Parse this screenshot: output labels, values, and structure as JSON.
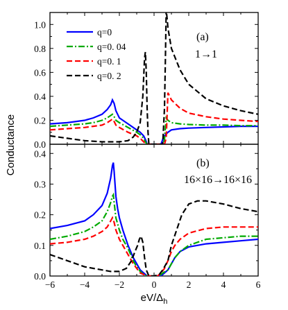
{
  "chart_data": [
    {
      "panel": "a",
      "type": "line",
      "annotation": "(a)",
      "subtitle": "1→1",
      "ylabel": "",
      "xlim": [
        -6,
        6
      ],
      "ylim": [
        0,
        1.1
      ],
      "yticks": [
        "0.0",
        "0.2",
        "0.4",
        "0.6",
        "0.8",
        "1.0"
      ],
      "ytick_values": [
        0,
        0.2,
        0.4,
        0.6,
        0.8,
        1.0
      ],
      "legend_position": "top-left",
      "series": [
        {
          "name": "q=0",
          "color": "#0000ff",
          "dash": "solid",
          "x": [
            -6,
            -5,
            -4,
            -3.5,
            -3,
            -2.7,
            -2.5,
            -2.4,
            -2.3,
            -2.2,
            -2.1,
            -2.0,
            -1.5,
            -1.0,
            -0.8,
            -0.6,
            -0.5,
            -0.45,
            -0.4,
            0.4,
            0.45,
            0.5,
            0.6,
            0.8,
            1.0,
            1.5,
            2,
            3,
            4,
            5,
            6
          ],
          "y": [
            0.17,
            0.18,
            0.2,
            0.22,
            0.25,
            0.29,
            0.33,
            0.37,
            0.34,
            0.28,
            0.25,
            0.22,
            0.17,
            0.12,
            0.1,
            0.07,
            0.04,
            0.02,
            0,
            0,
            0.02,
            0.04,
            0.07,
            0.1,
            0.12,
            0.13,
            0.135,
            0.14,
            0.145,
            0.15,
            0.15
          ]
        },
        {
          "name": "q=0. 04",
          "color": "#00aa00",
          "dash": "dashdot",
          "x": [
            -6,
            -5,
            -4,
            -3.5,
            -3,
            -2.7,
            -2.5,
            -2.4,
            -2.3,
            -2.2,
            -2.1,
            -2.0,
            -1.5,
            -1.0,
            -0.8,
            -0.6,
            -0.5,
            -0.4,
            0.5,
            0.6,
            0.7,
            0.8,
            1.0,
            1.5,
            2,
            3,
            4,
            5,
            6
          ],
          "y": [
            0.15,
            0.16,
            0.17,
            0.18,
            0.2,
            0.22,
            0.24,
            0.25,
            0.23,
            0.2,
            0.19,
            0.18,
            0.14,
            0.1,
            0.08,
            0.05,
            0.02,
            0,
            0,
            0.04,
            0.22,
            0.2,
            0.18,
            0.17,
            0.165,
            0.16,
            0.16,
            0.155,
            0.155
          ]
        },
        {
          "name": "q=0. 1",
          "color": "#ff0000",
          "dash": "dash",
          "x": [
            -6,
            -5,
            -4,
            -3.5,
            -3,
            -2.7,
            -2.5,
            -2.4,
            -2.3,
            -2.2,
            -2.0,
            -1.5,
            -1.0,
            -0.8,
            -0.6,
            -0.5,
            -0.4,
            0.6,
            0.7,
            0.8,
            1.0,
            1.5,
            2,
            3,
            4,
            5,
            6
          ],
          "y": [
            0.12,
            0.13,
            0.14,
            0.15,
            0.16,
            0.18,
            0.2,
            0.21,
            0.19,
            0.16,
            0.14,
            0.1,
            0.07,
            0.05,
            0.02,
            0.01,
            0,
            0,
            0.05,
            0.43,
            0.37,
            0.3,
            0.26,
            0.23,
            0.21,
            0.2,
            0.19
          ]
        },
        {
          "name": "q=0. 2",
          "color": "#000000",
          "dash": "dash",
          "x": [
            -6,
            -5,
            -4,
            -3,
            -2.5,
            -2,
            -1.5,
            -1.2,
            -1.0,
            -0.8,
            -0.65,
            -0.55,
            -0.5,
            -0.45,
            -0.4,
            -0.35,
            -0.3,
            0.5,
            0.6,
            0.65,
            0.7,
            0.75,
            0.8,
            1.0,
            1.5,
            2,
            3,
            4,
            5,
            6
          ],
          "y": [
            0.07,
            0.05,
            0.03,
            0.02,
            0.02,
            0.02,
            0.03,
            0.06,
            0.1,
            0.18,
            0.4,
            0.72,
            0.77,
            0.6,
            0.3,
            0.1,
            0,
            0,
            0.3,
            0.7,
            1.12,
            1.05,
            0.97,
            0.8,
            0.62,
            0.5,
            0.38,
            0.32,
            0.28,
            0.25
          ]
        }
      ]
    },
    {
      "panel": "b",
      "type": "line",
      "annotation": "(b)",
      "subtitle": "16×16→16×16",
      "xlabel": "eV/Δh",
      "xlim": [
        -6,
        6
      ],
      "ylim": [
        0,
        0.43
      ],
      "xticks": [
        "−6",
        "−4",
        "−2",
        "0",
        "2",
        "4",
        "6"
      ],
      "xtick_values": [
        -6,
        -4,
        -2,
        0,
        2,
        4,
        6
      ],
      "yticks": [
        "0.0",
        "0.1",
        "0.2",
        "0.3",
        "0.4"
      ],
      "ytick_values": [
        0,
        0.1,
        0.2,
        0.3,
        0.4
      ],
      "series": [
        {
          "name": "q=0",
          "color": "#0000ff",
          "dash": "solid",
          "x": [
            -6,
            -5,
            -4,
            -3.5,
            -3,
            -2.7,
            -2.5,
            -2.4,
            -2.35,
            -2.3,
            -2.2,
            -2.1,
            -2.0,
            -1.8,
            -1.5,
            -1.2,
            -1.0,
            -0.8,
            -0.6,
            -0.4,
            -0.2,
            0,
            0.2,
            0.4,
            0.6,
            0.8,
            1.0,
            1.2,
            1.5,
            2,
            3,
            4,
            5,
            6
          ],
          "y": [
            0.155,
            0.165,
            0.18,
            0.2,
            0.23,
            0.27,
            0.32,
            0.36,
            0.37,
            0.34,
            0.26,
            0.22,
            0.19,
            0.15,
            0.1,
            0.06,
            0.04,
            0.02,
            0.01,
            0,
            0,
            0,
            0,
            0,
            0.01,
            0.02,
            0.04,
            0.06,
            0.08,
            0.095,
            0.105,
            0.11,
            0.115,
            0.12
          ]
        },
        {
          "name": "q=0. 04",
          "color": "#00aa00",
          "dash": "dashdot",
          "x": [
            -6,
            -5,
            -4,
            -3.5,
            -3,
            -2.7,
            -2.5,
            -2.4,
            -2.35,
            -2.3,
            -2.2,
            -2.1,
            -2.0,
            -1.8,
            -1.5,
            -1.2,
            -1.0,
            -0.8,
            -0.6,
            -0.4,
            0.3,
            0.5,
            0.8,
            1.0,
            1.2,
            1.5,
            2,
            3,
            4,
            5,
            6
          ],
          "y": [
            0.12,
            0.13,
            0.145,
            0.16,
            0.18,
            0.21,
            0.24,
            0.26,
            0.265,
            0.24,
            0.19,
            0.17,
            0.15,
            0.12,
            0.09,
            0.05,
            0.03,
            0.015,
            0.005,
            0,
            0,
            0.01,
            0.02,
            0.04,
            0.06,
            0.08,
            0.1,
            0.12,
            0.125,
            0.13,
            0.13
          ]
        },
        {
          "name": "q=0. 1",
          "color": "#ff0000",
          "dash": "dash",
          "x": [
            -6,
            -5,
            -4,
            -3.5,
            -3,
            -2.7,
            -2.5,
            -2.4,
            -2.3,
            -2.2,
            -2.0,
            -1.8,
            -1.5,
            -1.2,
            -1.0,
            -0.8,
            -0.6,
            -0.4,
            0.2,
            0.4,
            0.6,
            0.8,
            1.0,
            1.2,
            1.5,
            2,
            3,
            4,
            5,
            6
          ],
          "y": [
            0.105,
            0.11,
            0.12,
            0.13,
            0.145,
            0.16,
            0.18,
            0.19,
            0.175,
            0.15,
            0.12,
            0.1,
            0.07,
            0.04,
            0.025,
            0.01,
            0.005,
            0,
            0,
            0.01,
            0.025,
            0.05,
            0.08,
            0.1,
            0.12,
            0.14,
            0.155,
            0.16,
            0.16,
            0.16
          ]
        },
        {
          "name": "q=0. 2",
          "color": "#000000",
          "dash": "dash",
          "x": [
            -6,
            -5,
            -4,
            -3,
            -2.5,
            -2,
            -1.6,
            -1.3,
            -1.1,
            -0.95,
            -0.85,
            -0.75,
            -0.65,
            -0.55,
            -0.45,
            -0.3,
            0,
            0.3,
            0.5,
            0.8,
            1.0,
            1.3,
            1.6,
            2,
            2.5,
            3,
            4,
            5,
            6
          ],
          "y": [
            0.07,
            0.05,
            0.03,
            0.02,
            0.015,
            0.015,
            0.025,
            0.05,
            0.08,
            0.1,
            0.12,
            0.13,
            0.11,
            0.06,
            0.02,
            0,
            0,
            0.005,
            0.02,
            0.05,
            0.1,
            0.15,
            0.2,
            0.235,
            0.245,
            0.245,
            0.235,
            0.22,
            0.21
          ]
        }
      ]
    }
  ],
  "shared_ylabel": "Conductance"
}
